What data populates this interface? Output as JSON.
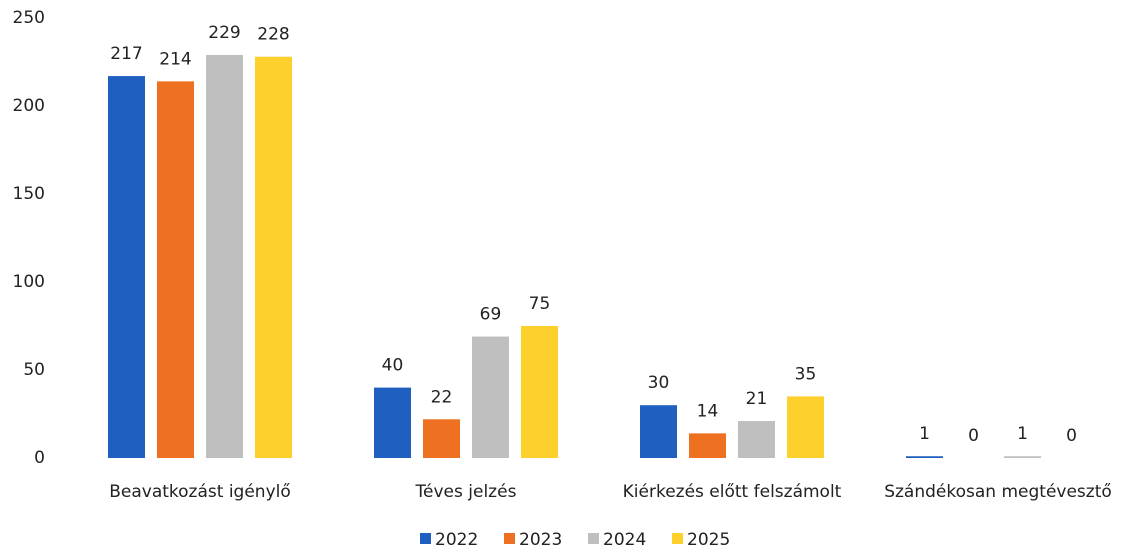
{
  "chart_data": {
    "type": "bar",
    "categories": [
      "Beavatkozást igénylő",
      "Téves jelzés",
      "Kiérkezés előtt felszámolt",
      "Szándékosan megtévesztő"
    ],
    "series": [
      {
        "name": "2022",
        "color": "#1f5fbf",
        "values": [
          217,
          40,
          30,
          1
        ]
      },
      {
        "name": "2023",
        "color": "#ee7122",
        "values": [
          214,
          22,
          14,
          0
        ]
      },
      {
        "name": "2024",
        "color": "#bfbfbf",
        "values": [
          229,
          69,
          21,
          1
        ]
      },
      {
        "name": "2025",
        "color": "#fdd02c",
        "values": [
          228,
          75,
          35,
          0
        ]
      }
    ],
    "ylim": [
      0,
      250
    ],
    "yticks": [
      0,
      50,
      100,
      150,
      200,
      250
    ],
    "grid": false,
    "legend": "bottom"
  }
}
